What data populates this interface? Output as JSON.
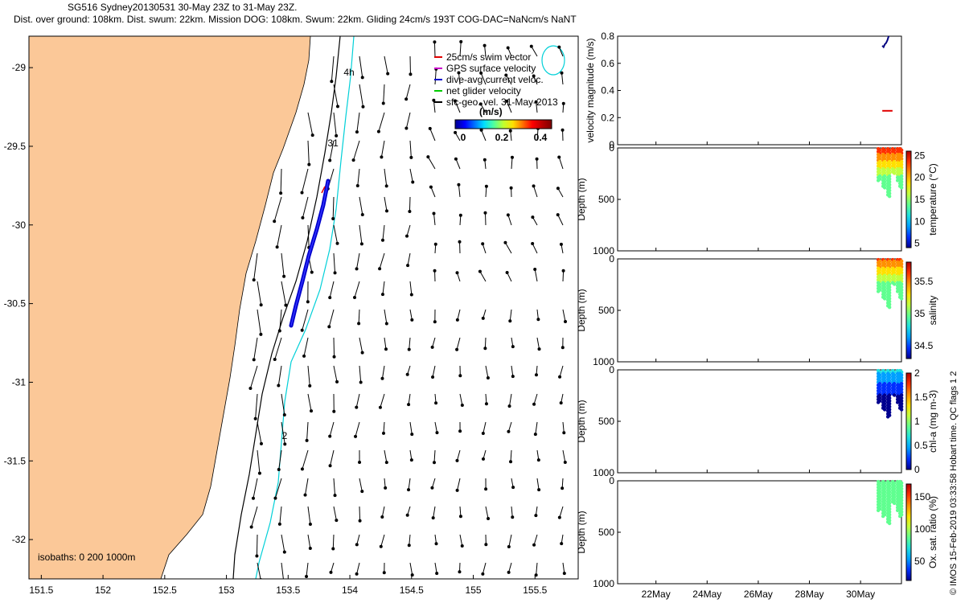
{
  "header": {
    "title": "SG516 Sydney20130531 30-May 23Z to 31-May 23Z.",
    "subtitle": "Dist. over ground: 108km. Dist. swum: 22km. Mission DOG: 108km. Swum: 22km. Gliding 24cm/s 193T COG-DAC=NaNcm/s NaNT"
  },
  "map": {
    "x_ticks": [
      "151.5",
      "152",
      "152.5",
      "153",
      "153.5",
      "154",
      "154.5",
      "155",
      "155.5"
    ],
    "x_tick_values": [
      151.5,
      152,
      152.5,
      153,
      153.5,
      154,
      154.5,
      155,
      155.5
    ],
    "y_ticks": [
      "-29",
      "-29.5",
      "-30",
      "-30.5",
      "-31",
      "-31.5",
      "-32"
    ],
    "y_tick_values": [
      -29,
      -29.5,
      -30,
      -30.5,
      -31,
      -31.5,
      -32
    ],
    "xlim": [
      151.4,
      155.85
    ],
    "ylim": [
      -32.25,
      -28.8
    ],
    "land_color": "#fbc898",
    "isobaths_label": "isobaths: 0   200   1000m",
    "track_labels": [
      {
        "text": "4h",
        "lon": 153.95,
        "lat": -29.05
      },
      {
        "text": "31",
        "lon": 153.82,
        "lat": -29.5
      },
      {
        "text": "2",
        "lon": 153.45,
        "lat": -31.36
      }
    ],
    "legend": [
      {
        "label": "25cm/s swim vector",
        "color": "#e00000"
      },
      {
        "label": "GPS surface velocity",
        "color": "#cc00cc"
      },
      {
        "label": "dive-avg current veloc.",
        "color": "#0000cc"
      },
      {
        "label": "net glider velocity",
        "color": "#00cc00"
      },
      {
        "label": "sfc-geo. vel. 31-May-2013",
        "color": "#000000"
      }
    ],
    "colorbar": {
      "label": "(m/s)",
      "ticks": [
        "0",
        "0.2",
        "0.4"
      ],
      "tick_values": [
        0,
        0.2,
        0.4
      ],
      "range": [
        0,
        0.5
      ]
    }
  },
  "chart_data": [
    {
      "type": "line",
      "ylabel": "velocity magnitude (m/s)",
      "ylim": [
        0,
        0.8
      ],
      "y_ticks": [
        "0",
        "0.2",
        "0.4",
        "0.6",
        "0.8"
      ],
      "series": [
        {
          "color": "#000080",
          "x": [
            30.85,
            30.9,
            30.95,
            31.0,
            31.05,
            31.1
          ],
          "values": [
            0.73,
            0.72,
            0.74,
            0.75,
            0.77,
            0.8
          ]
        },
        {
          "color": "#e00000",
          "x": [
            30.85,
            31.25
          ],
          "values": [
            0.25,
            0.25
          ]
        }
      ]
    },
    {
      "type": "scatter",
      "ylabel": "Depth (m)",
      "clabel": "temperature (°C)",
      "ylim": [
        0,
        1000
      ],
      "y_ticks": [
        "0",
        "500",
        "1000"
      ],
      "cticks": [
        "5",
        "10",
        "15",
        "20",
        "25"
      ],
      "crange": [
        4,
        26
      ],
      "surface_value": 24.5,
      "deep_value": 14,
      "max_depth": 470
    },
    {
      "type": "scatter",
      "ylabel": "Depth (m)",
      "clabel": "salinity",
      "ylim": [
        0,
        1000
      ],
      "y_ticks": [
        "0",
        "500",
        "1000"
      ],
      "cticks": [
        "34.5",
        "35",
        "35.5"
      ],
      "crange": [
        34.3,
        35.8
      ],
      "surface_value": 35.6,
      "deep_value": 34.9,
      "max_depth": 470
    },
    {
      "type": "scatter",
      "ylabel": "Depth (m)",
      "clabel": "chl-a (mg m-3)",
      "ylim": [
        0,
        1000
      ],
      "y_ticks": [
        "0",
        "500",
        "1000"
      ],
      "cticks": [
        "0",
        "0.5",
        "1",
        "1.5",
        "2"
      ],
      "crange": [
        0,
        2
      ],
      "surface_value": 0.6,
      "deep_value": 0.02,
      "max_depth": 460
    },
    {
      "type": "scatter",
      "ylabel": "Depth (m)",
      "clabel": "Ox. sat. ratio (%)",
      "ylim": [
        0,
        1000
      ],
      "y_ticks": [
        "0",
        "500",
        "1000"
      ],
      "cticks": [
        "50",
        "100",
        "150"
      ],
      "crange": [
        20,
        170
      ],
      "surface_value": 95,
      "deep_value": 85,
      "max_depth": 420
    }
  ],
  "time_axis": {
    "ticks": [
      "22May",
      "24May",
      "26May",
      "28May",
      "30May"
    ],
    "tick_values": [
      22,
      24,
      26,
      28,
      30
    ],
    "xlim": [
      20.5,
      31.6
    ]
  },
  "footer": {
    "stamp": "© IMOS 15-Feb-2019 03:33:58 Hobart time. QC flags 1  2"
  }
}
